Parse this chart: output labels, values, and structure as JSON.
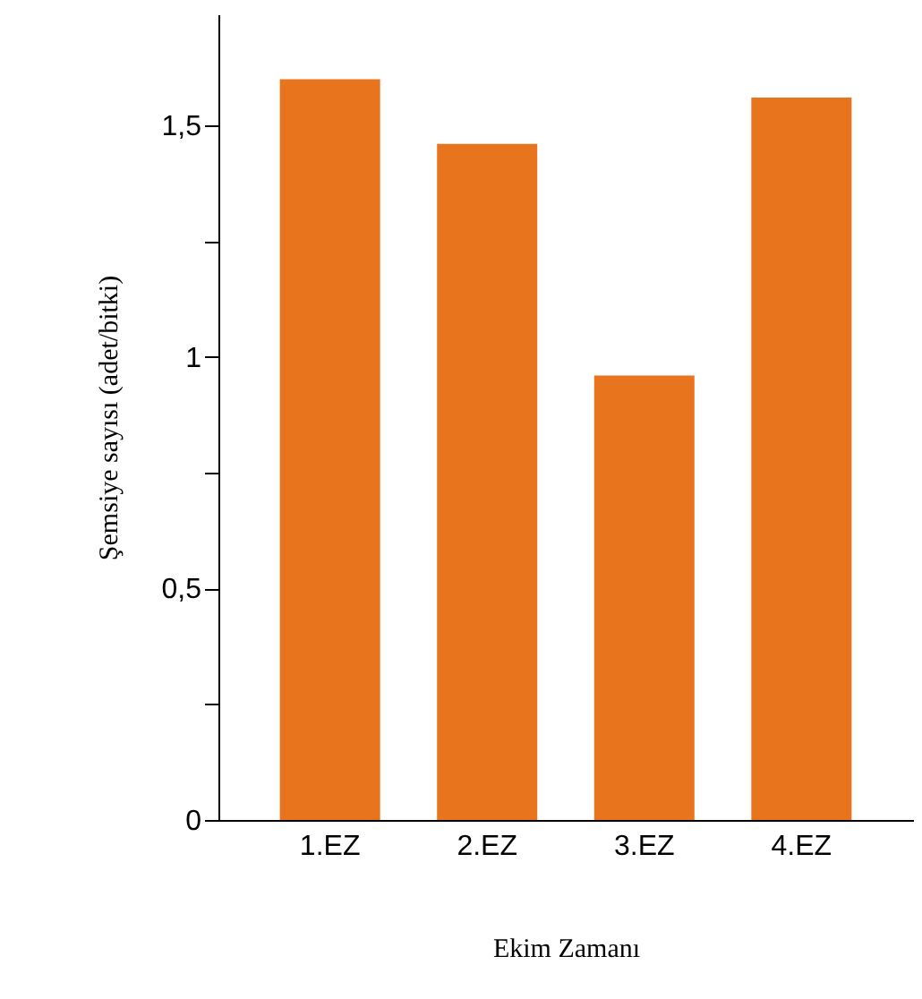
{
  "chart_data": {
    "type": "bar",
    "xlabel": "Ekim Zamanı",
    "ylabel": "Şemsiye sayısı (adet/bitki)",
    "categories": [
      "1.EZ",
      "2.EZ",
      "3.EZ",
      "4.EZ"
    ],
    "values": [
      1.6,
      1.46,
      0.96,
      1.56
    ],
    "color": "#e8741e",
    "ylim": [
      0,
      1.74
    ],
    "yticks": [
      {
        "value": 0,
        "label": "0"
      },
      {
        "value": 0.25,
        "label": null
      },
      {
        "value": 0.5,
        "label": "0,5"
      },
      {
        "value": 0.75,
        "label": null
      },
      {
        "value": 1,
        "label": "1"
      },
      {
        "value": 1.25,
        "label": null
      },
      {
        "value": 1.5,
        "label": "1,5"
      }
    ],
    "grid": false
  }
}
